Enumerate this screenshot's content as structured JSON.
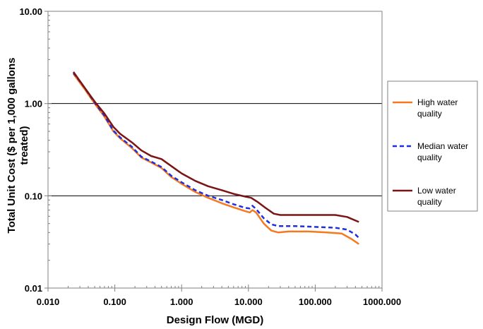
{
  "chart_data": {
    "type": "line",
    "xlabel": "Design Flow (MGD)",
    "ylabel_lines": [
      "Total Unit Cost ($ per 1,000 gallons",
      "treated)"
    ],
    "x_scale": "log",
    "y_scale": "log",
    "xlim": [
      0.01,
      1000
    ],
    "ylim": [
      0.01,
      10
    ],
    "x_ticks": [
      0.01,
      0.1,
      1,
      10,
      100,
      1000
    ],
    "x_tick_labels": [
      "0.010",
      "0.100",
      "1.000",
      "10.000",
      "100.000",
      "1000.000"
    ],
    "y_ticks": [
      0.01,
      0.1,
      1,
      10
    ],
    "y_tick_labels": [
      "0.01",
      "0.10",
      "1.00",
      "10.00"
    ],
    "grid": "horizontal major",
    "legend_position": "right",
    "series": [
      {
        "name_lines": [
          "High water",
          "quality"
        ],
        "color": "#F47920",
        "style": "solid",
        "points": [
          [
            0.024,
            2.1
          ],
          [
            0.035,
            1.45
          ],
          [
            0.05,
            1.0
          ],
          [
            0.07,
            0.72
          ],
          [
            0.095,
            0.5
          ],
          [
            0.12,
            0.42
          ],
          [
            0.18,
            0.33
          ],
          [
            0.25,
            0.26
          ],
          [
            0.35,
            0.23
          ],
          [
            0.5,
            0.2
          ],
          [
            0.7,
            0.16
          ],
          [
            1.0,
            0.135
          ],
          [
            1.6,
            0.11
          ],
          [
            2.5,
            0.095
          ],
          [
            4.0,
            0.083
          ],
          [
            6.0,
            0.075
          ],
          [
            9.0,
            0.068
          ],
          [
            10.5,
            0.066
          ],
          [
            11.5,
            0.07
          ],
          [
            13.0,
            0.066
          ],
          [
            17.0,
            0.05
          ],
          [
            22.0,
            0.042
          ],
          [
            28.0,
            0.04
          ],
          [
            40.0,
            0.041
          ],
          [
            80.0,
            0.041
          ],
          [
            150.0,
            0.04
          ],
          [
            250.0,
            0.039
          ],
          [
            350.0,
            0.034
          ],
          [
            450.0,
            0.03
          ]
        ]
      },
      {
        "name_lines": [
          "Median water",
          "quality"
        ],
        "color": "#1F2FE0",
        "style": "dashed",
        "points": [
          [
            0.024,
            2.15
          ],
          [
            0.035,
            1.5
          ],
          [
            0.05,
            1.02
          ],
          [
            0.07,
            0.74
          ],
          [
            0.095,
            0.51
          ],
          [
            0.12,
            0.43
          ],
          [
            0.18,
            0.34
          ],
          [
            0.25,
            0.265
          ],
          [
            0.35,
            0.235
          ],
          [
            0.5,
            0.205
          ],
          [
            0.7,
            0.165
          ],
          [
            1.0,
            0.14
          ],
          [
            1.6,
            0.115
          ],
          [
            2.5,
            0.1
          ],
          [
            4.0,
            0.09
          ],
          [
            6.0,
            0.081
          ],
          [
            9.0,
            0.074
          ],
          [
            10.5,
            0.073
          ],
          [
            11.5,
            0.078
          ],
          [
            13.0,
            0.072
          ],
          [
            17.0,
            0.057
          ],
          [
            22.0,
            0.049
          ],
          [
            28.0,
            0.047
          ],
          [
            50.0,
            0.047
          ],
          [
            100.0,
            0.046
          ],
          [
            200.0,
            0.045
          ],
          [
            300.0,
            0.043
          ],
          [
            400.0,
            0.038
          ],
          [
            450.0,
            0.035
          ]
        ]
      },
      {
        "name_lines": [
          "Low water",
          "quality"
        ],
        "color": "#7B1515",
        "style": "solid",
        "points": [
          [
            0.024,
            2.2
          ],
          [
            0.035,
            1.5
          ],
          [
            0.05,
            1.05
          ],
          [
            0.07,
            0.78
          ],
          [
            0.095,
            0.56
          ],
          [
            0.12,
            0.47
          ],
          [
            0.18,
            0.38
          ],
          [
            0.25,
            0.31
          ],
          [
            0.35,
            0.27
          ],
          [
            0.5,
            0.25
          ],
          [
            0.7,
            0.21
          ],
          [
            1.0,
            0.175
          ],
          [
            1.6,
            0.145
          ],
          [
            2.5,
            0.127
          ],
          [
            4.0,
            0.115
          ],
          [
            6.0,
            0.105
          ],
          [
            9.0,
            0.098
          ],
          [
            11.0,
            0.095
          ],
          [
            14.0,
            0.085
          ],
          [
            18.0,
            0.074
          ],
          [
            24.0,
            0.064
          ],
          [
            30.0,
            0.062
          ],
          [
            80.0,
            0.062
          ],
          [
            200.0,
            0.062
          ],
          [
            300.0,
            0.059
          ],
          [
            450.0,
            0.052
          ]
        ]
      }
    ]
  }
}
